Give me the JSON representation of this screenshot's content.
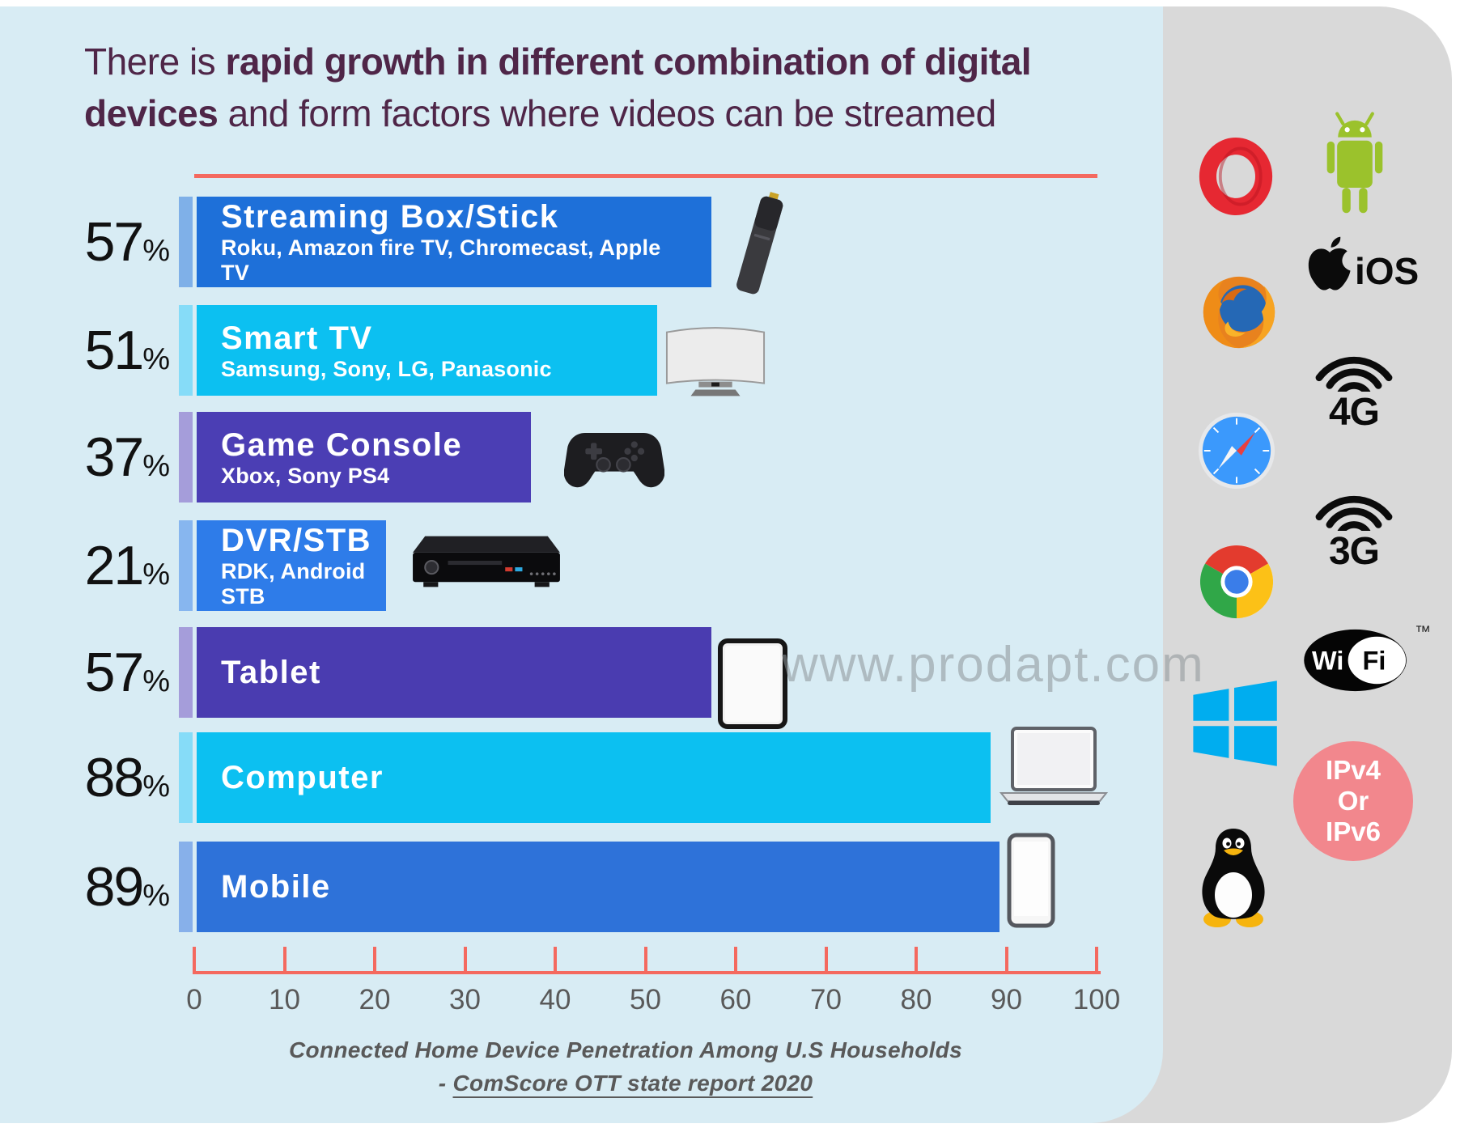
{
  "title": {
    "l1a": "There is ",
    "l1b": "rapid growth in different combination of digital",
    "l2a": "devices",
    "l2b": " and form factors where videos can be streamed"
  },
  "watermark": "www.prodapt.com",
  "labels": {
    "percent_sign": "%",
    "tm": "™"
  },
  "chart_data": {
    "type": "bar",
    "orientation": "horizontal",
    "unit": "%",
    "title": "Connected Home Device Penetration Among U.S Households",
    "source": "ComScore OTT state report 2020",
    "categories": [
      "Streaming Box/Stick",
      "Smart TV",
      "Game Console",
      "DVR/STB",
      "Tablet",
      "Computer",
      "Mobile"
    ],
    "values": [
      57,
      51,
      37,
      21,
      57,
      88,
      89
    ],
    "xlim": [
      0,
      100
    ],
    "xticks": [
      0,
      10,
      20,
      30,
      40,
      50,
      60,
      70,
      80,
      90,
      100
    ],
    "legend": "none",
    "grid": false,
    "bars": [
      {
        "percent": "57",
        "value": 57,
        "label": "Streaming Box/Stick",
        "sub": "Roku, Amazon fire TV, Chromecast, Apple TV",
        "color": "#1e70d9",
        "strip_color": "#7fb0e8",
        "device_icon": "streaming-stick"
      },
      {
        "percent": "51",
        "value": 51,
        "label": "Smart TV",
        "sub": "Samsung, Sony, LG, Panasonic",
        "color": "#0cc0f1",
        "strip_color": "#86dcf8",
        "device_icon": "smart-tv"
      },
      {
        "percent": "37",
        "value": 37,
        "label": "Game Console",
        "sub": "Xbox, Sony PS4",
        "color": "#4b3eb4",
        "strip_color": "#a59dda",
        "device_icon": "game-controller"
      },
      {
        "percent": "21",
        "value": 21,
        "label": "DVR/STB",
        "sub": "RDK, Android STB",
        "color": "#2e7ce9",
        "strip_color": "#87b6ef",
        "device_icon": "dvr-box"
      },
      {
        "percent": "57",
        "value": 57,
        "label": "Tablet",
        "sub": "",
        "color": "#4a3cb0",
        "strip_color": "#a59dda",
        "device_icon": "tablet"
      },
      {
        "percent": "88",
        "value": 88,
        "label": "Computer",
        "sub": "",
        "color": "#0cc0f1",
        "strip_color": "#86dcf8",
        "device_icon": "laptop"
      },
      {
        "percent": "89",
        "value": 89,
        "label": "Mobile",
        "sub": "",
        "color": "#2e72d9",
        "strip_color": "#87b0ea",
        "device_icon": "smartphone"
      }
    ]
  },
  "caption": {
    "line1": "Connected Home Device Penetration Among U.S Households",
    "source_prefix": "- ",
    "source_underlined": "ComScore OTT state report 2020"
  },
  "sidebar": {
    "ios_label": "iOS",
    "g4_label": "4G",
    "g3_label": "3G",
    "wifi": {
      "wi": "Wi",
      "fi": "Fi"
    },
    "ipv_lines": [
      "IPv4",
      "Or",
      "IPv6"
    ],
    "icon_names": [
      "opera",
      "android",
      "firefox",
      "apple-ios",
      "safari",
      "4g",
      "3g",
      "chrome",
      "wifi",
      "windows",
      "ipv4-or-ipv6",
      "linux-tux"
    ]
  },
  "colors": {
    "panel_blue": "#d8ecf4",
    "panel_gray": "#d9d9d9",
    "accent_salmon": "#f4695f",
    "title_plum": "#4f2648",
    "axis_text": "#595959",
    "ipv_pink": "#f2878d"
  }
}
